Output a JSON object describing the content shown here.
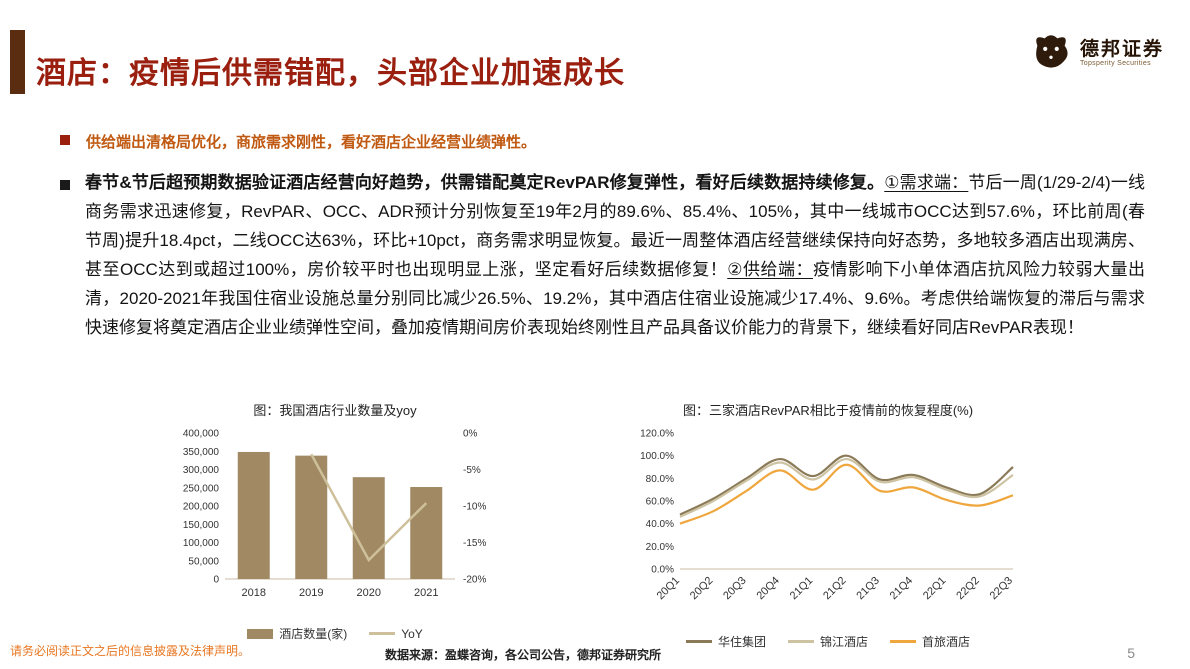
{
  "header": {
    "title": "酒店：疫情后供需错配，头部企业加速成长",
    "brand_cn": "德邦证券",
    "brand_en": "Topsperity Securities"
  },
  "summary": {
    "highlight": "供给端出清格局优化，商旅需求刚性，看好酒店企业经营业绩弹性。"
  },
  "body": {
    "lead": "春节&节后超预期数据验证酒店经营向好趋势，供需错配奠定RevPAR修复弹性，看好后续数据持续修复。",
    "underline1": "①需求端：",
    "text1": "节后一周(1/29-2/4)一线商务需求迅速修复，RevPAR、OCC、ADR预计分别恢复至19年2月的89.6%、85.4%、105%，其中一线城市OCC达到57.6%，环比前周(春节周)提升18.4pct，二线OCC达63%，环比+10pct，商务需求明显恢复。最近一周整体酒店经营继续保持向好态势，多地较多酒店出现满房、甚至OCC达到或超过100%，房价较平时也出现明显上涨，坚定看好后续数据修复！",
    "underline2": "②供给端：",
    "text2": "疫情影响下小单体酒店抗风险力较弱大量出清，2020-2021年我国住宿业设施总量分别同比减少26.5%、19.2%，其中酒店住宿业设施减少17.4%、9.6%。考虑供给端恢复的滞后与需求快速修复将奠定酒店企业业绩弹性空间，叠加疫情期间房价表现始终刚性且产品具备议价能力的背景下，继续看好同店RevPAR表现！"
  },
  "chart_data": [
    {
      "type": "bar",
      "title": "图：我国酒店行业数量及yoy",
      "categories": [
        "2018",
        "2019",
        "2020",
        "2021"
      ],
      "series": [
        {
          "name": "酒店数量(家)",
          "kind": "bar",
          "axis": "left",
          "values": [
            348000,
            338000,
            279000,
            252000
          ],
          "color": "#a18a63"
        },
        {
          "name": "YoY",
          "kind": "line",
          "axis": "right",
          "values": [
            null,
            -2.9,
            -17.4,
            -9.6
          ],
          "color": "#cdc09b"
        }
      ],
      "y_left": {
        "min": 0,
        "max": 400000,
        "step": 50000
      },
      "y_right": {
        "min": -20,
        "max": 0,
        "step": 5,
        "format": "percent"
      },
      "grid": false,
      "legend_position": "bottom"
    },
    {
      "type": "line",
      "title": "图：三家酒店RevPAR相比于疫情前的恢复程度(%)",
      "categories": [
        "20Q1",
        "20Q2",
        "20Q3",
        "20Q4",
        "21Q1",
        "21Q2",
        "21Q3",
        "21Q4",
        "22Q1",
        "22Q2",
        "22Q3"
      ],
      "series": [
        {
          "name": "华住集团",
          "values": [
            48,
            62,
            80,
            97,
            82,
            100,
            79,
            83,
            72,
            66,
            90
          ],
          "color": "#8a7a57"
        },
        {
          "name": "锦江酒店",
          "values": [
            46,
            60,
            78,
            94,
            79,
            97,
            77,
            81,
            70,
            64,
            83
          ],
          "color": "#cdc3a3"
        },
        {
          "name": "首旅酒店",
          "values": [
            40,
            51,
            69,
            87,
            70,
            92,
            69,
            72,
            61,
            56,
            65
          ],
          "color": "#efa63c"
        }
      ],
      "ylim": [
        0,
        120
      ],
      "y_step": 20,
      "grid": false,
      "legend_position": "bottom"
    }
  ],
  "footer": {
    "disclaimer": "请务必阅读正文之后的信息披露及法律声明。",
    "source": "数据来源：盈蝶咨询，各公司公告，德邦证券研究所",
    "page_number": "5"
  },
  "colors": {
    "title": "#9a1f0f",
    "accent_bar": "#5a2c10",
    "summary_text": "#c05a12",
    "footer_orange": "#e87722"
  }
}
